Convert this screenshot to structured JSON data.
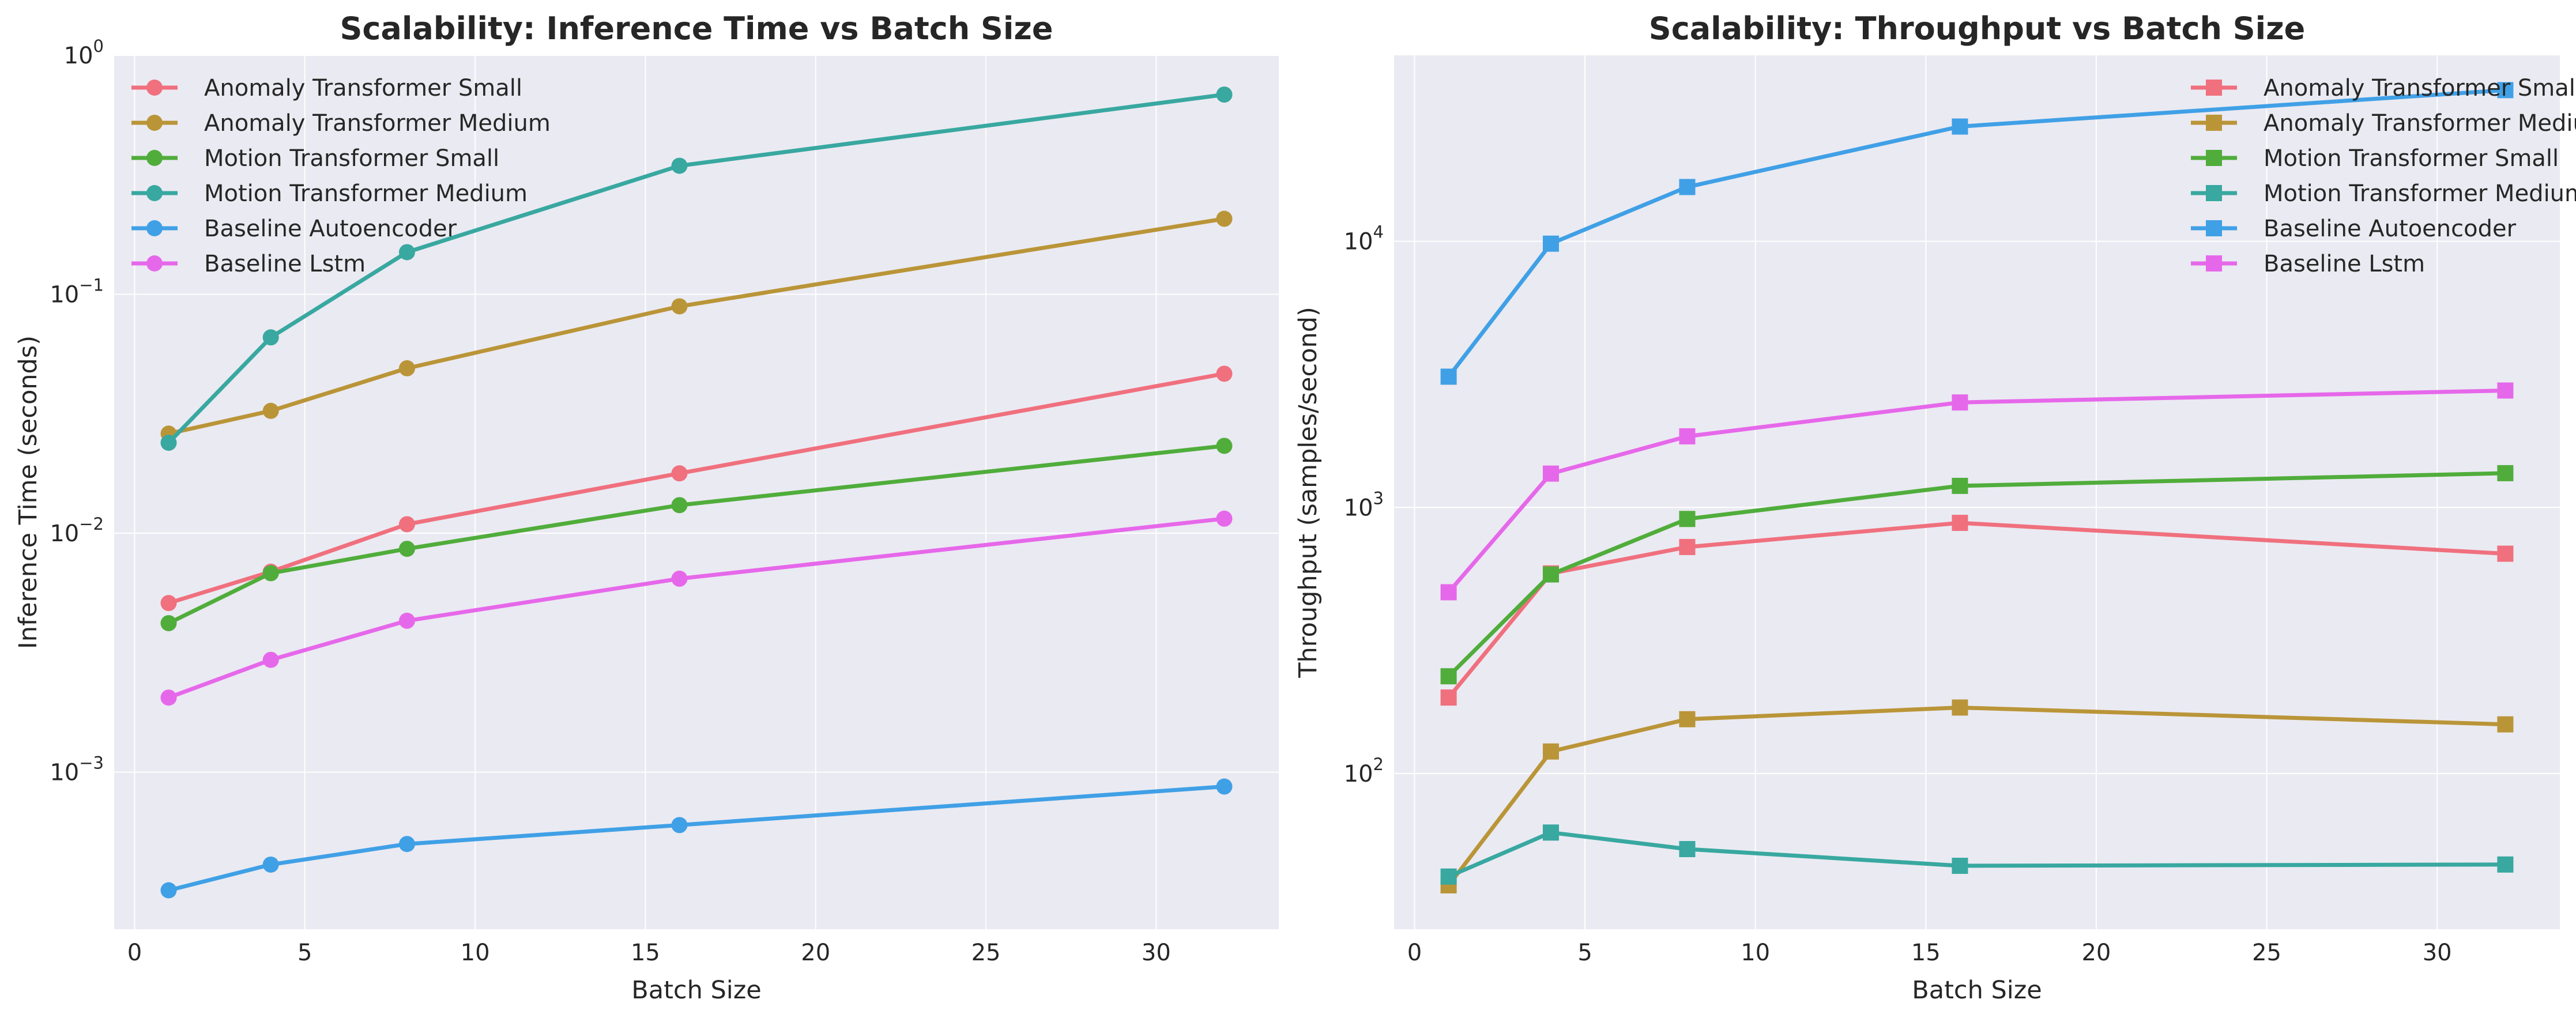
{
  "chart_data": [
    {
      "type": "line",
      "title": "Scalability: Inference Time vs Batch Size",
      "xlabel": "Batch Size",
      "ylabel": "Inference Time (seconds)",
      "yscale": "log",
      "xlim": [
        -0.6,
        33.6
      ],
      "ylim": [
        0.00022,
        1.0
      ],
      "xticks": [
        0,
        5,
        10,
        15,
        20,
        25,
        30
      ],
      "xtick_labels": [
        "0",
        "5",
        "10",
        "15",
        "20",
        "25",
        "30"
      ],
      "yticks": [
        {
          "base": "10",
          "exp": "0",
          "value": 1
        },
        {
          "base": "10",
          "exp": "−1",
          "value": 0.1
        },
        {
          "base": "10",
          "exp": "−2",
          "value": 0.01
        },
        {
          "base": "10",
          "exp": "−3",
          "value": 0.001
        }
      ],
      "marker": "circle",
      "grid": true,
      "legend_position": "upper-left",
      "x": [
        1,
        4,
        8,
        16,
        32
      ],
      "series": [
        {
          "name": "Anomaly Transformer Small",
          "color": "#f0707e",
          "values": [
            0.0051,
            0.0069,
            0.0109,
            0.0178,
            0.0465
          ]
        },
        {
          "name": "Anomaly Transformer Medium",
          "color": "#ba9538",
          "values": [
            0.0261,
            0.0325,
            0.049,
            0.089,
            0.207
          ]
        },
        {
          "name": "Motion Transformer Small",
          "color": "#50ad3b",
          "values": [
            0.0042,
            0.0068,
            0.0086,
            0.0131,
            0.0232
          ]
        },
        {
          "name": "Motion Transformer Medium",
          "color": "#38a8a0",
          "values": [
            0.0239,
            0.066,
            0.15,
            0.345,
            0.685
          ]
        },
        {
          "name": "Baseline Autoencoder",
          "color": "#40a0e6",
          "values": [
            0.00032,
            0.00041,
            0.0005,
            0.0006,
            0.00087
          ]
        },
        {
          "name": "Baseline Lstm",
          "color": "#e668ea",
          "values": [
            0.00205,
            0.00295,
            0.0043,
            0.00645,
            0.0115
          ]
        }
      ]
    },
    {
      "type": "line",
      "title": "Scalability: Throughput vs Batch Size",
      "xlabel": "Batch Size",
      "ylabel": "Throughput (samples/second)",
      "yscale": "log",
      "xlim": [
        -0.6,
        33.6
      ],
      "ylim": [
        26,
        50000
      ],
      "xticks": [
        0,
        5,
        10,
        15,
        20,
        25,
        30
      ],
      "xtick_labels": [
        "0",
        "5",
        "10",
        "15",
        "20",
        "25",
        "30"
      ],
      "yticks": [
        {
          "base": "10",
          "exp": "4",
          "value": 10000
        },
        {
          "base": "10",
          "exp": "3",
          "value": 1000
        },
        {
          "base": "10",
          "exp": "2",
          "value": 100
        }
      ],
      "marker": "square",
      "grid": true,
      "legend_position": "upper-right",
      "x": [
        1,
        4,
        8,
        16,
        32
      ],
      "series": [
        {
          "name": "Anomaly Transformer Small",
          "color": "#f0707e",
          "values": [
            193,
            565,
            710,
            875,
            670
          ]
        },
        {
          "name": "Anomaly Transformer Medium",
          "color": "#ba9538",
          "values": [
            38,
            121,
            160,
            177,
            153
          ]
        },
        {
          "name": "Motion Transformer Small",
          "color": "#50ad3b",
          "values": [
            232,
            560,
            905,
            1205,
            1345
          ]
        },
        {
          "name": "Motion Transformer Medium",
          "color": "#38a8a0",
          "values": [
            41,
            60,
            52,
            45,
            45.5
          ]
        },
        {
          "name": "Baseline Autoencoder",
          "color": "#40a0e6",
          "values": [
            3100,
            9800,
            16000,
            27000,
            37000
          ]
        },
        {
          "name": "Baseline Lstm",
          "color": "#e668ea",
          "values": [
            480,
            1340,
            1850,
            2480,
            2750
          ]
        }
      ]
    }
  ]
}
